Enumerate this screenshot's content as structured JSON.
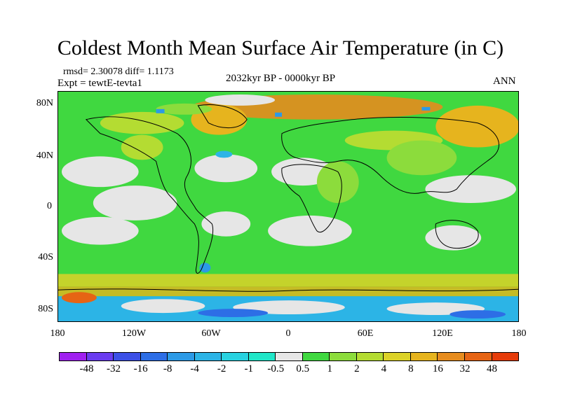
{
  "title": "Coldest Month Mean Surface Air Temperature (in C)",
  "stats_text": "rmsd= 2.30078 diff= 1.1173",
  "expt_text": "Expt = tewtE-tevta1",
  "period_text": "2032kyr BP - 0000kyr BP",
  "season_text": "ANN",
  "map": {
    "background_color": "#40d840",
    "lat_ticks": [
      "80N",
      "40N",
      "0",
      "40S",
      "80S"
    ],
    "lon_ticks": [
      "180",
      "120W",
      "60W",
      "0",
      "60E",
      "120E",
      "180"
    ]
  },
  "colorbar": {
    "colors": [
      "#a020f0",
      "#6a3cf0",
      "#3c50e6",
      "#2d6ee6",
      "#2c9ae6",
      "#2cb4e6",
      "#28d2e0",
      "#20e6c8",
      "#e6e6e6",
      "#40d840",
      "#8cdc3c",
      "#b4dc32",
      "#dcd228",
      "#e6b41e",
      "#e68c1e",
      "#e66414",
      "#e63c0a"
    ],
    "labels": [
      "-48",
      "-32",
      "-16",
      "-8",
      "-4",
      "-2",
      "-1",
      "-0.5",
      "0.5",
      "1",
      "2",
      "4",
      "8",
      "16",
      "32",
      "48"
    ]
  }
}
